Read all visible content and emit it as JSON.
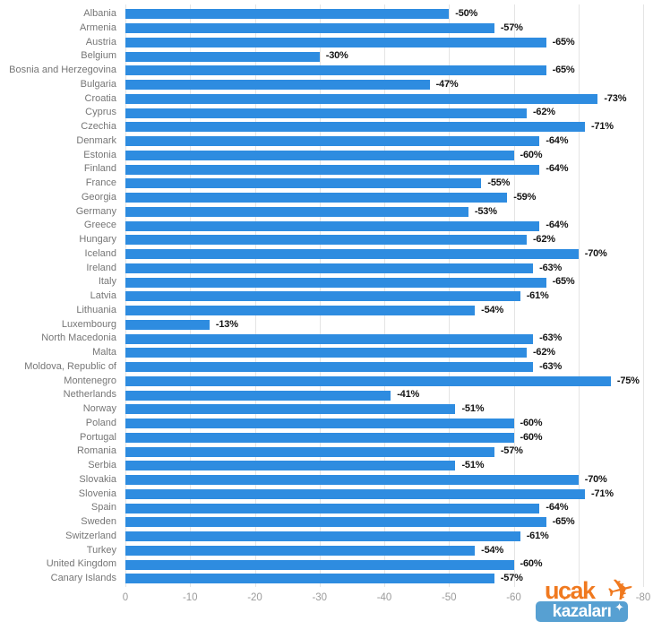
{
  "chart_data": {
    "type": "bar",
    "orientation": "horizontal",
    "title": "",
    "xlabel": "",
    "ylabel": "",
    "unit": "%",
    "grid": true,
    "legend": false,
    "xlim": [
      0,
      -80
    ],
    "x_ticks": [
      0,
      -10,
      -20,
      -30,
      -40,
      -50,
      -60,
      -70,
      -80
    ],
    "bar_color": "#2e8ce0",
    "categories": [
      "Albania",
      "Armenia",
      "Austria",
      "Belgium",
      "Bosnia and Herzegovina",
      "Bulgaria",
      "Croatia",
      "Cyprus",
      "Czechia",
      "Denmark",
      "Estonia",
      "Finland",
      "France",
      "Georgia",
      "Germany",
      "Greece",
      "Hungary",
      "Iceland",
      "Ireland",
      "Italy",
      "Latvia",
      "Lithuania",
      "Luxembourg",
      "North Macedonia",
      "Malta",
      "Moldova, Republic of",
      "Montenegro",
      "Netherlands",
      "Norway",
      "Poland",
      "Portugal",
      "Romania",
      "Serbia",
      "Slovakia",
      "Slovenia",
      "Spain",
      "Sweden",
      "Switzerland",
      "Turkey",
      "United Kingdom",
      "Canary Islands"
    ],
    "values": [
      -50,
      -57,
      -65,
      -30,
      -65,
      -47,
      -73,
      -62,
      -71,
      -64,
      -60,
      -64,
      -55,
      -59,
      -53,
      -64,
      -62,
      -70,
      -63,
      -65,
      -61,
      -54,
      -13,
      -63,
      -62,
      -63,
      -75,
      -41,
      -51,
      -60,
      -60,
      -57,
      -51,
      -70,
      -71,
      -64,
      -65,
      -61,
      -54,
      -60,
      -57
    ]
  },
  "colors": {
    "bar": "#2e8ce0",
    "category_label": "#767676",
    "value_label": "#141414",
    "tick_label": "#9b9b9b",
    "gridline": "#e4e4e4",
    "logo_orange": "#f0791f",
    "logo_blue": "#57a0d2"
  },
  "watermark": {
    "word1": "uçak",
    "word2": "kazaları",
    "plane_glyph": "✈",
    "sparkle_glyph": "✦"
  }
}
